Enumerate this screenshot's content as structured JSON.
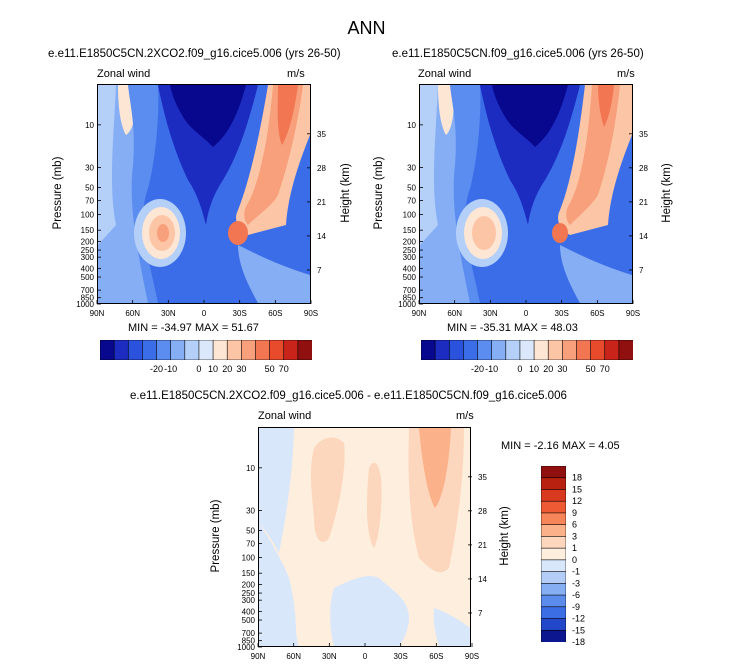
{
  "title": "ANN",
  "panels": [
    {
      "case": "e.e11.E1850C5CN.2XCO2.f09_g16.cice5.006 (yrs 26-50)",
      "label_left": "Zonal wind",
      "label_right": "m/s",
      "stats": "MIN = -34.97   MAX = 51.67"
    },
    {
      "case": "e.e11.E1850C5CN.f09_g16.cice5.006 (yrs 26-50)",
      "label_left": "Zonal wind",
      "label_right": "m/s",
      "stats": "MIN = -35.31   MAX = 48.03"
    },
    {
      "case": "e.e11.E1850C5CN.2XCO2.f09_g16.cice5.006 - e.e11.E1850C5CN.f09_g16.cice5.006",
      "label_left": "Zonal wind",
      "label_right": "m/s",
      "stats": "MIN = -2.16   MAX =  4.05"
    }
  ],
  "axes": {
    "ylabel_left": "Pressure (mb)",
    "ylabel_right": "Height (km)",
    "x_ticks": [
      "90N",
      "60N",
      "30N",
      "0",
      "30S",
      "60S",
      "90S"
    ],
    "p_ticks": [
      "10",
      "30",
      "50",
      "70",
      "100",
      "150",
      "200",
      "250",
      "300",
      "400",
      "500",
      "700",
      "850",
      "1000"
    ],
    "p_values": [
      10,
      30,
      50,
      70,
      100,
      150,
      200,
      250,
      300,
      400,
      500,
      700,
      850,
      1000
    ],
    "h_ticks": [
      "35",
      "28",
      "21",
      "14",
      "7"
    ],
    "h_values": [
      35,
      28,
      21,
      14,
      7
    ]
  },
  "chart_data": [
    {
      "type": "heatmap",
      "title": "e.e11.E1850C5CN.2XCO2.f09_g16.cice5.006 (yrs 26-50)",
      "variable": "Zonal wind",
      "units": "m/s",
      "min": -34.97,
      "max": 51.67,
      "levels": [
        -20,
        -10,
        0,
        10,
        20,
        30,
        50,
        70
      ],
      "colorbar_labels": [
        "-20",
        "-10",
        "0",
        "10",
        "20",
        "30",
        "50",
        "70"
      ]
    },
    {
      "type": "heatmap",
      "title": "e.e11.E1850C5CN.f09_g16.cice5.006 (yrs 26-50)",
      "variable": "Zonal wind",
      "units": "m/s",
      "min": -35.31,
      "max": 48.03,
      "levels": [
        -20,
        -10,
        0,
        10,
        20,
        30,
        50,
        70
      ],
      "colorbar_labels": [
        "-20",
        "-10",
        "0",
        "10",
        "20",
        "30",
        "50",
        "70"
      ]
    },
    {
      "type": "heatmap",
      "title": "e.e11.E1850C5CN.2XCO2.f09_g16.cice5.006 - e.e11.E1850C5CN.f09_g16.cice5.006",
      "variable": "Zonal wind",
      "units": "m/s",
      "min": -2.16,
      "max": 4.05,
      "levels": [
        18,
        15,
        12,
        9,
        6,
        3,
        1,
        0,
        -1,
        -3,
        -6,
        -9,
        -12,
        -15,
        -18
      ],
      "colorbar_labels": [
        "18",
        "15",
        "12",
        "9",
        "6",
        "3",
        "1",
        "0",
        "-1",
        "-3",
        "-6",
        "-9",
        "-12",
        "-15",
        "-18"
      ]
    }
  ],
  "colors": {
    "top_scale": [
      "#08088f",
      "#1c2cc0",
      "#2a52dc",
      "#3b6de8",
      "#5b8cf0",
      "#86aef4",
      "#b4cff8",
      "#dbe8fb",
      "#fde6d4",
      "#fcc6a6",
      "#f8a07b",
      "#f27652",
      "#e84a2c",
      "#c8241a",
      "#901010"
    ],
    "diff_scale": [
      "#901010",
      "#b8200f",
      "#d9391f",
      "#ee5a33",
      "#f7855a",
      "#fbb28a",
      "#fdd7bd",
      "#fdeede",
      "#d9e7fb",
      "#b3cdf6",
      "#86aef2",
      "#5b8cec",
      "#3b6de4",
      "#2247c8",
      "#0b168f"
    ]
  }
}
